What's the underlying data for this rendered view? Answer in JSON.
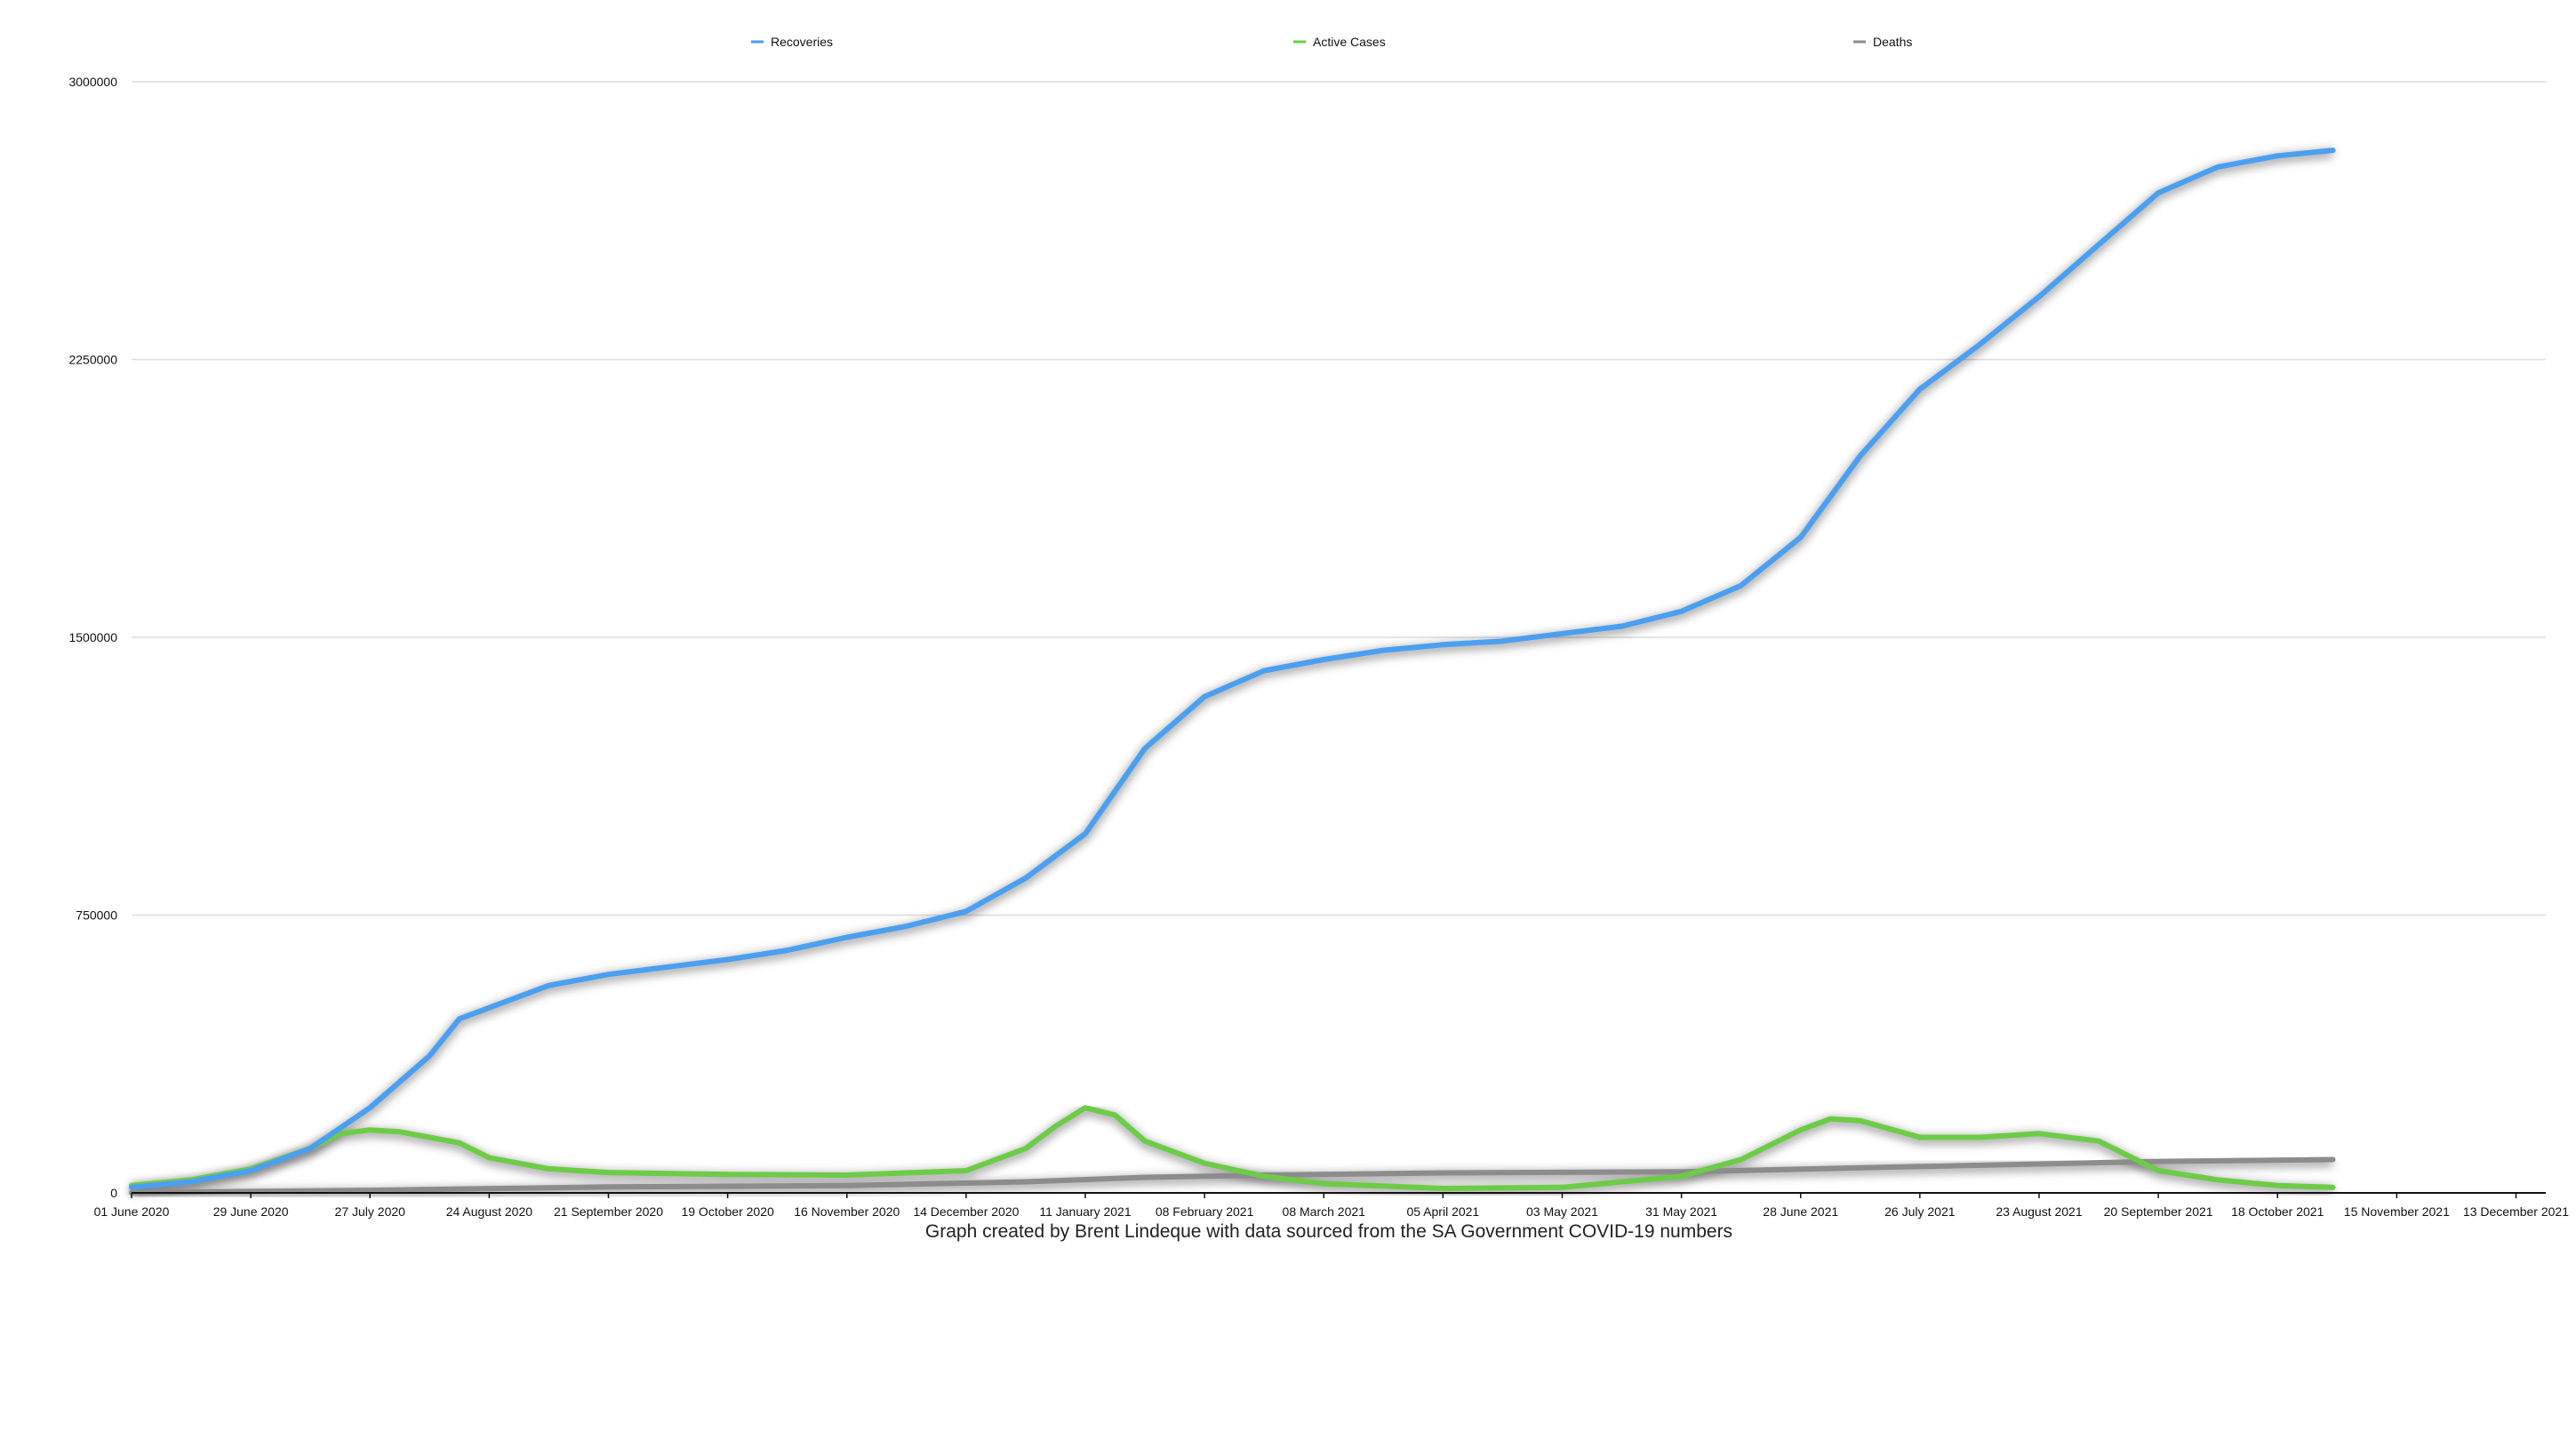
{
  "chart_data": {
    "type": "line",
    "title": "",
    "xlabel": "",
    "ylabel": "",
    "caption": "Graph created by Brent Lindeque with data sourced from the SA Government COVID-19 numbers",
    "x_dates": [
      "2020-06-01",
      "2021-12-20"
    ],
    "x_tick_labels": [
      "01 June 2020",
      "29 June 2020",
      "27 July 2020",
      "24 August 2020",
      "21 September 2020",
      "19 October 2020",
      "16 November 2020",
      "14 December 2020",
      "11 January 2021",
      "08 February 2021",
      "08 March 2021",
      "05 April 2021",
      "03 May 2021",
      "31 May 2021",
      "28 June 2021",
      "26 July 2021",
      "23 August 2021",
      "20 September 2021",
      "18 October 2021",
      "15 November 2021",
      "13 December 2021"
    ],
    "y_ticks": [
      0,
      750000,
      1500000,
      2250000,
      3000000
    ],
    "y_tick_labels": [
      "0",
      "750000",
      "1500000",
      "2250000",
      "3000000"
    ],
    "ylim": [
      0,
      3000000
    ],
    "grid": true,
    "legend_position": "top",
    "series": [
      {
        "name": "Recoveries",
        "color": "#4a9ff0",
        "points": [
          [
            "2020-06-01",
            15000
          ],
          [
            "2020-06-15",
            30000
          ],
          [
            "2020-06-29",
            60000
          ],
          [
            "2020-07-13",
            120000
          ],
          [
            "2020-07-27",
            230000
          ],
          [
            "2020-08-10",
            370000
          ],
          [
            "2020-08-17",
            470000
          ],
          [
            "2020-08-24",
            500000
          ],
          [
            "2020-09-07",
            560000
          ],
          [
            "2020-09-21",
            590000
          ],
          [
            "2020-10-05",
            610000
          ],
          [
            "2020-10-19",
            630000
          ],
          [
            "2020-11-02",
            655000
          ],
          [
            "2020-11-16",
            690000
          ],
          [
            "2020-11-30",
            720000
          ],
          [
            "2020-12-14",
            760000
          ],
          [
            "2020-12-28",
            850000
          ],
          [
            "2021-01-11",
            970000
          ],
          [
            "2021-01-25",
            1200000
          ],
          [
            "2021-02-08",
            1340000
          ],
          [
            "2021-02-22",
            1410000
          ],
          [
            "2021-03-08",
            1440000
          ],
          [
            "2021-03-22",
            1465000
          ],
          [
            "2021-04-05",
            1480000
          ],
          [
            "2021-04-19",
            1490000
          ],
          [
            "2021-05-03",
            1510000
          ],
          [
            "2021-05-17",
            1530000
          ],
          [
            "2021-05-31",
            1570000
          ],
          [
            "2021-06-14",
            1640000
          ],
          [
            "2021-06-28",
            1770000
          ],
          [
            "2021-07-12",
            1990000
          ],
          [
            "2021-07-26",
            2170000
          ],
          [
            "2021-08-09",
            2290000
          ],
          [
            "2021-08-23",
            2420000
          ],
          [
            "2021-09-06",
            2560000
          ],
          [
            "2021-09-20",
            2700000
          ],
          [
            "2021-10-04",
            2770000
          ],
          [
            "2021-10-18",
            2800000
          ],
          [
            "2021-10-31",
            2815000
          ]
        ]
      },
      {
        "name": "Active Cases",
        "color": "#6ccc46",
        "points": [
          [
            "2020-06-01",
            20000
          ],
          [
            "2020-06-15",
            35000
          ],
          [
            "2020-06-29",
            65000
          ],
          [
            "2020-07-13",
            120000
          ],
          [
            "2020-07-20",
            160000
          ],
          [
            "2020-07-27",
            170000
          ],
          [
            "2020-08-03",
            165000
          ],
          [
            "2020-08-17",
            135000
          ],
          [
            "2020-08-24",
            95000
          ],
          [
            "2020-09-07",
            65000
          ],
          [
            "2020-09-21",
            55000
          ],
          [
            "2020-10-19",
            50000
          ],
          [
            "2020-11-16",
            48000
          ],
          [
            "2020-12-14",
            60000
          ],
          [
            "2020-12-28",
            120000
          ],
          [
            "2021-01-04",
            180000
          ],
          [
            "2021-01-11",
            230000
          ],
          [
            "2021-01-18",
            210000
          ],
          [
            "2021-01-25",
            140000
          ],
          [
            "2021-02-08",
            80000
          ],
          [
            "2021-02-22",
            45000
          ],
          [
            "2021-03-08",
            25000
          ],
          [
            "2021-04-05",
            12000
          ],
          [
            "2021-05-03",
            15000
          ],
          [
            "2021-05-31",
            45000
          ],
          [
            "2021-06-14",
            90000
          ],
          [
            "2021-06-28",
            170000
          ],
          [
            "2021-07-05",
            200000
          ],
          [
            "2021-07-12",
            195000
          ],
          [
            "2021-07-26",
            150000
          ],
          [
            "2021-08-09",
            150000
          ],
          [
            "2021-08-23",
            160000
          ],
          [
            "2021-09-06",
            140000
          ],
          [
            "2021-09-20",
            60000
          ],
          [
            "2021-10-04",
            35000
          ],
          [
            "2021-10-18",
            20000
          ],
          [
            "2021-10-31",
            15000
          ]
        ]
      },
      {
        "name": "Deaths",
        "color": "#8c8c8c",
        "points": [
          [
            "2020-06-01",
            1000
          ],
          [
            "2020-07-27",
            7000
          ],
          [
            "2020-09-21",
            16000
          ],
          [
            "2020-11-16",
            20000
          ],
          [
            "2020-12-28",
            30000
          ],
          [
            "2021-01-25",
            42000
          ],
          [
            "2021-02-22",
            48000
          ],
          [
            "2021-04-05",
            54000
          ],
          [
            "2021-05-31",
            57000
          ],
          [
            "2021-07-12",
            68000
          ],
          [
            "2021-08-23",
            78000
          ],
          [
            "2021-09-20",
            85000
          ],
          [
            "2021-10-31",
            90000
          ]
        ]
      }
    ]
  }
}
